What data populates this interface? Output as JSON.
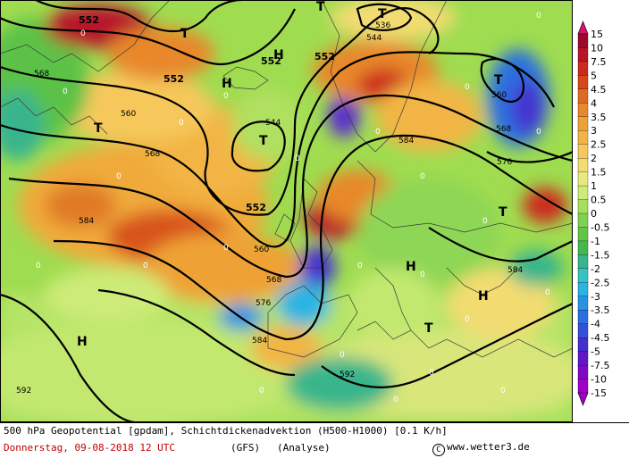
{
  "footer": {
    "product_line": "500 hPa Geopotential [gpdam], Schichtdickenadvektion (H500-H1000) [0.1 K/h]",
    "date_line": "Donnerstag, 09-08-2018  12 UTC",
    "model": "(GFS)",
    "run": "(Analyse)",
    "copyright_symbol": "C",
    "copyright": "www.wetter3.de"
  },
  "legend": {
    "labels": [
      "15",
      "10",
      "7.5",
      "5",
      "4.5",
      "4",
      "3.5",
      "3",
      "2.5",
      "2",
      "1.5",
      "1",
      "0.5",
      "0",
      "-0.5",
      "-1",
      "-1.5",
      "-2",
      "-2.5",
      "-3",
      "-3.5",
      "-4",
      "-4.5",
      "-5",
      "-7.5",
      "-10",
      "-15"
    ],
    "colors": [
      "#d8106e",
      "#9a0a2a",
      "#b8152a",
      "#cc2a1c",
      "#d8461a",
      "#e06a22",
      "#e8882a",
      "#eea235",
      "#f2b545",
      "#f6c85c",
      "#f2dc72",
      "#e8e880",
      "#cdeb78",
      "#a4e05a",
      "#7fd24e",
      "#60c646",
      "#44b84c",
      "#38b58c",
      "#32c4c4",
      "#2ab4e2",
      "#2892e4",
      "#2a70e0",
      "#3450d8",
      "#4430d0",
      "#6218c8",
      "#8208c8",
      "#a000c8"
    ]
  },
  "pressure_labels": [
    {
      "text": "552",
      "id": "a"
    },
    {
      "text": "552",
      "id": "b"
    },
    {
      "text": "552",
      "id": "c"
    },
    {
      "text": "552",
      "id": "d"
    },
    {
      "text": "552",
      "id": "e"
    },
    {
      "text": "544",
      "id": "f"
    },
    {
      "text": "544",
      "id": "g"
    },
    {
      "text": "536",
      "id": "h"
    },
    {
      "text": "560",
      "id": "i"
    },
    {
      "text": "560",
      "id": "j"
    },
    {
      "text": "560",
      "id": "k"
    },
    {
      "text": "568",
      "id": "l"
    },
    {
      "text": "568",
      "id": "m"
    },
    {
      "text": "568",
      "id": "n"
    },
    {
      "text": "568",
      "id": "o"
    },
    {
      "text": "576",
      "id": "p"
    },
    {
      "text": "576",
      "id": "q"
    },
    {
      "text": "584",
      "id": "r"
    },
    {
      "text": "584",
      "id": "s"
    },
    {
      "text": "584",
      "id": "t"
    },
    {
      "text": "584",
      "id": "u"
    },
    {
      "text": "592",
      "id": "v"
    },
    {
      "text": "592",
      "id": "w"
    }
  ],
  "pressure_centers": [
    "T",
    "T",
    "T",
    "T",
    "T",
    "T",
    "T",
    "H",
    "H",
    "H",
    "H",
    "H"
  ]
}
